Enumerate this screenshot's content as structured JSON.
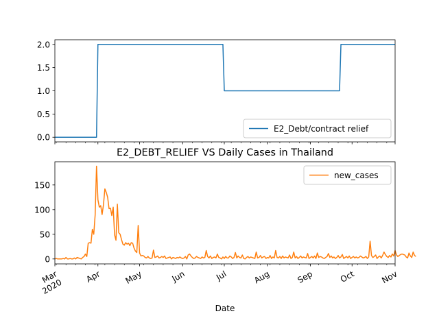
{
  "chart_data": [
    {
      "type": "line",
      "title": "",
      "xlabel": "",
      "ylabel": "",
      "x_type": "date",
      "xlim": [
        "2020-03-01",
        "2020-11-01"
      ],
      "ylim": [
        -0.1,
        2.1
      ],
      "yticks": [
        0.0,
        0.5,
        1.0,
        1.5,
        2.0
      ],
      "ytick_labels": [
        "0.0",
        "0.5",
        "1.0",
        "1.5",
        "2.0"
      ],
      "x_tick_labels_visible": false,
      "grid": false,
      "legend": {
        "position": "lower-right"
      },
      "series": [
        {
          "name": "E2_Debt/contract relief",
          "color": "#1f77b4",
          "style": "step",
          "points": [
            {
              "x": "2020-03-01",
              "y": 0
            },
            {
              "x": "2020-03-31",
              "y": 0
            },
            {
              "x": "2020-04-01",
              "y": 2
            },
            {
              "x": "2020-06-30",
              "y": 2
            },
            {
              "x": "2020-07-01",
              "y": 1
            },
            {
              "x": "2020-09-22",
              "y": 1
            },
            {
              "x": "2020-09-23",
              "y": 2
            },
            {
              "x": "2020-11-01",
              "y": 2
            }
          ]
        }
      ]
    },
    {
      "type": "line",
      "title": "E2_DEBT_RELIEF VS Daily Cases in Thailand",
      "xlabel": "Date",
      "ylabel": "",
      "x_type": "date",
      "xlim": [
        "2020-03-01",
        "2020-11-01"
      ],
      "ylim": [
        -10,
        197
      ],
      "yticks": [
        0,
        50,
        100,
        150
      ],
      "ytick_labels": [
        "0",
        "50",
        "100",
        "150"
      ],
      "xticks": [
        "2020-03-01",
        "2020-04-01",
        "2020-05-01",
        "2020-06-01",
        "2020-07-01",
        "2020-08-01",
        "2020-09-01",
        "2020-10-01",
        "2020-11-01"
      ],
      "xtick_labels": [
        "Mar\n2020",
        "Apr",
        "May",
        "Jun",
        "Jul",
        "Aug",
        "Sep",
        "Oct",
        "Nov"
      ],
      "grid": false,
      "legend": {
        "position": "top-right"
      },
      "series": [
        {
          "name": "new_cases",
          "color": "#ff7f0e",
          "start": "2020-03-01",
          "step_days": 1,
          "values": [
            0,
            1,
            0,
            0,
            0,
            0,
            1,
            0,
            3,
            0,
            0,
            1,
            0,
            0,
            2,
            0,
            3,
            2,
            1,
            0,
            3,
            5,
            10,
            5,
            32,
            33,
            32,
            60,
            50,
            89,
            188,
            120,
            105,
            108,
            90,
            110,
            142,
            135,
            125,
            102,
            103,
            88,
            105,
            49,
            38,
            111,
            53,
            50,
            39,
            30,
            28,
            33,
            30,
            32,
            27,
            33,
            32,
            22,
            16,
            13,
            68,
            12,
            6,
            7,
            6,
            3,
            2,
            5,
            2,
            1,
            2,
            18,
            3,
            4,
            6,
            2,
            3,
            5,
            3,
            6,
            1,
            2,
            3,
            4,
            0,
            3,
            2,
            1,
            3,
            2,
            4,
            2,
            1,
            2,
            5,
            0,
            8,
            10,
            6,
            3,
            1,
            2,
            5,
            3,
            2,
            1,
            4,
            2,
            3,
            17,
            5,
            2,
            6,
            1,
            3,
            4,
            2,
            10,
            3,
            2,
            0,
            4,
            1,
            5,
            2,
            2,
            6,
            4,
            1,
            3,
            13,
            2,
            6,
            3,
            2,
            8,
            1,
            0,
            3,
            5,
            2,
            4,
            3,
            2,
            1,
            14,
            2,
            3,
            7,
            2,
            4,
            5,
            1,
            3,
            2,
            7,
            1,
            4,
            2,
            17,
            3,
            2,
            5,
            1,
            6,
            2,
            4,
            3,
            2,
            8,
            1,
            3,
            14,
            2,
            5,
            1,
            3,
            6,
            2,
            4,
            3,
            2,
            11,
            1,
            3,
            5,
            2,
            6,
            1,
            12,
            3,
            5,
            4,
            2,
            1,
            3,
            5,
            11,
            3,
            6,
            2,
            4,
            1,
            3,
            7,
            2,
            4,
            9,
            1,
            3,
            5,
            2,
            6,
            1,
            3,
            5,
            2,
            4,
            2,
            3,
            6,
            4,
            2,
            3,
            5,
            1,
            4,
            36,
            7,
            3,
            5,
            8,
            1,
            4,
            6,
            2,
            7,
            14,
            9,
            5,
            3,
            7,
            4,
            10,
            6,
            17,
            8,
            5,
            7,
            9,
            10,
            9,
            8,
            4,
            2,
            12,
            6,
            3,
            14,
            7,
            5
          ]
        }
      ]
    }
  ]
}
